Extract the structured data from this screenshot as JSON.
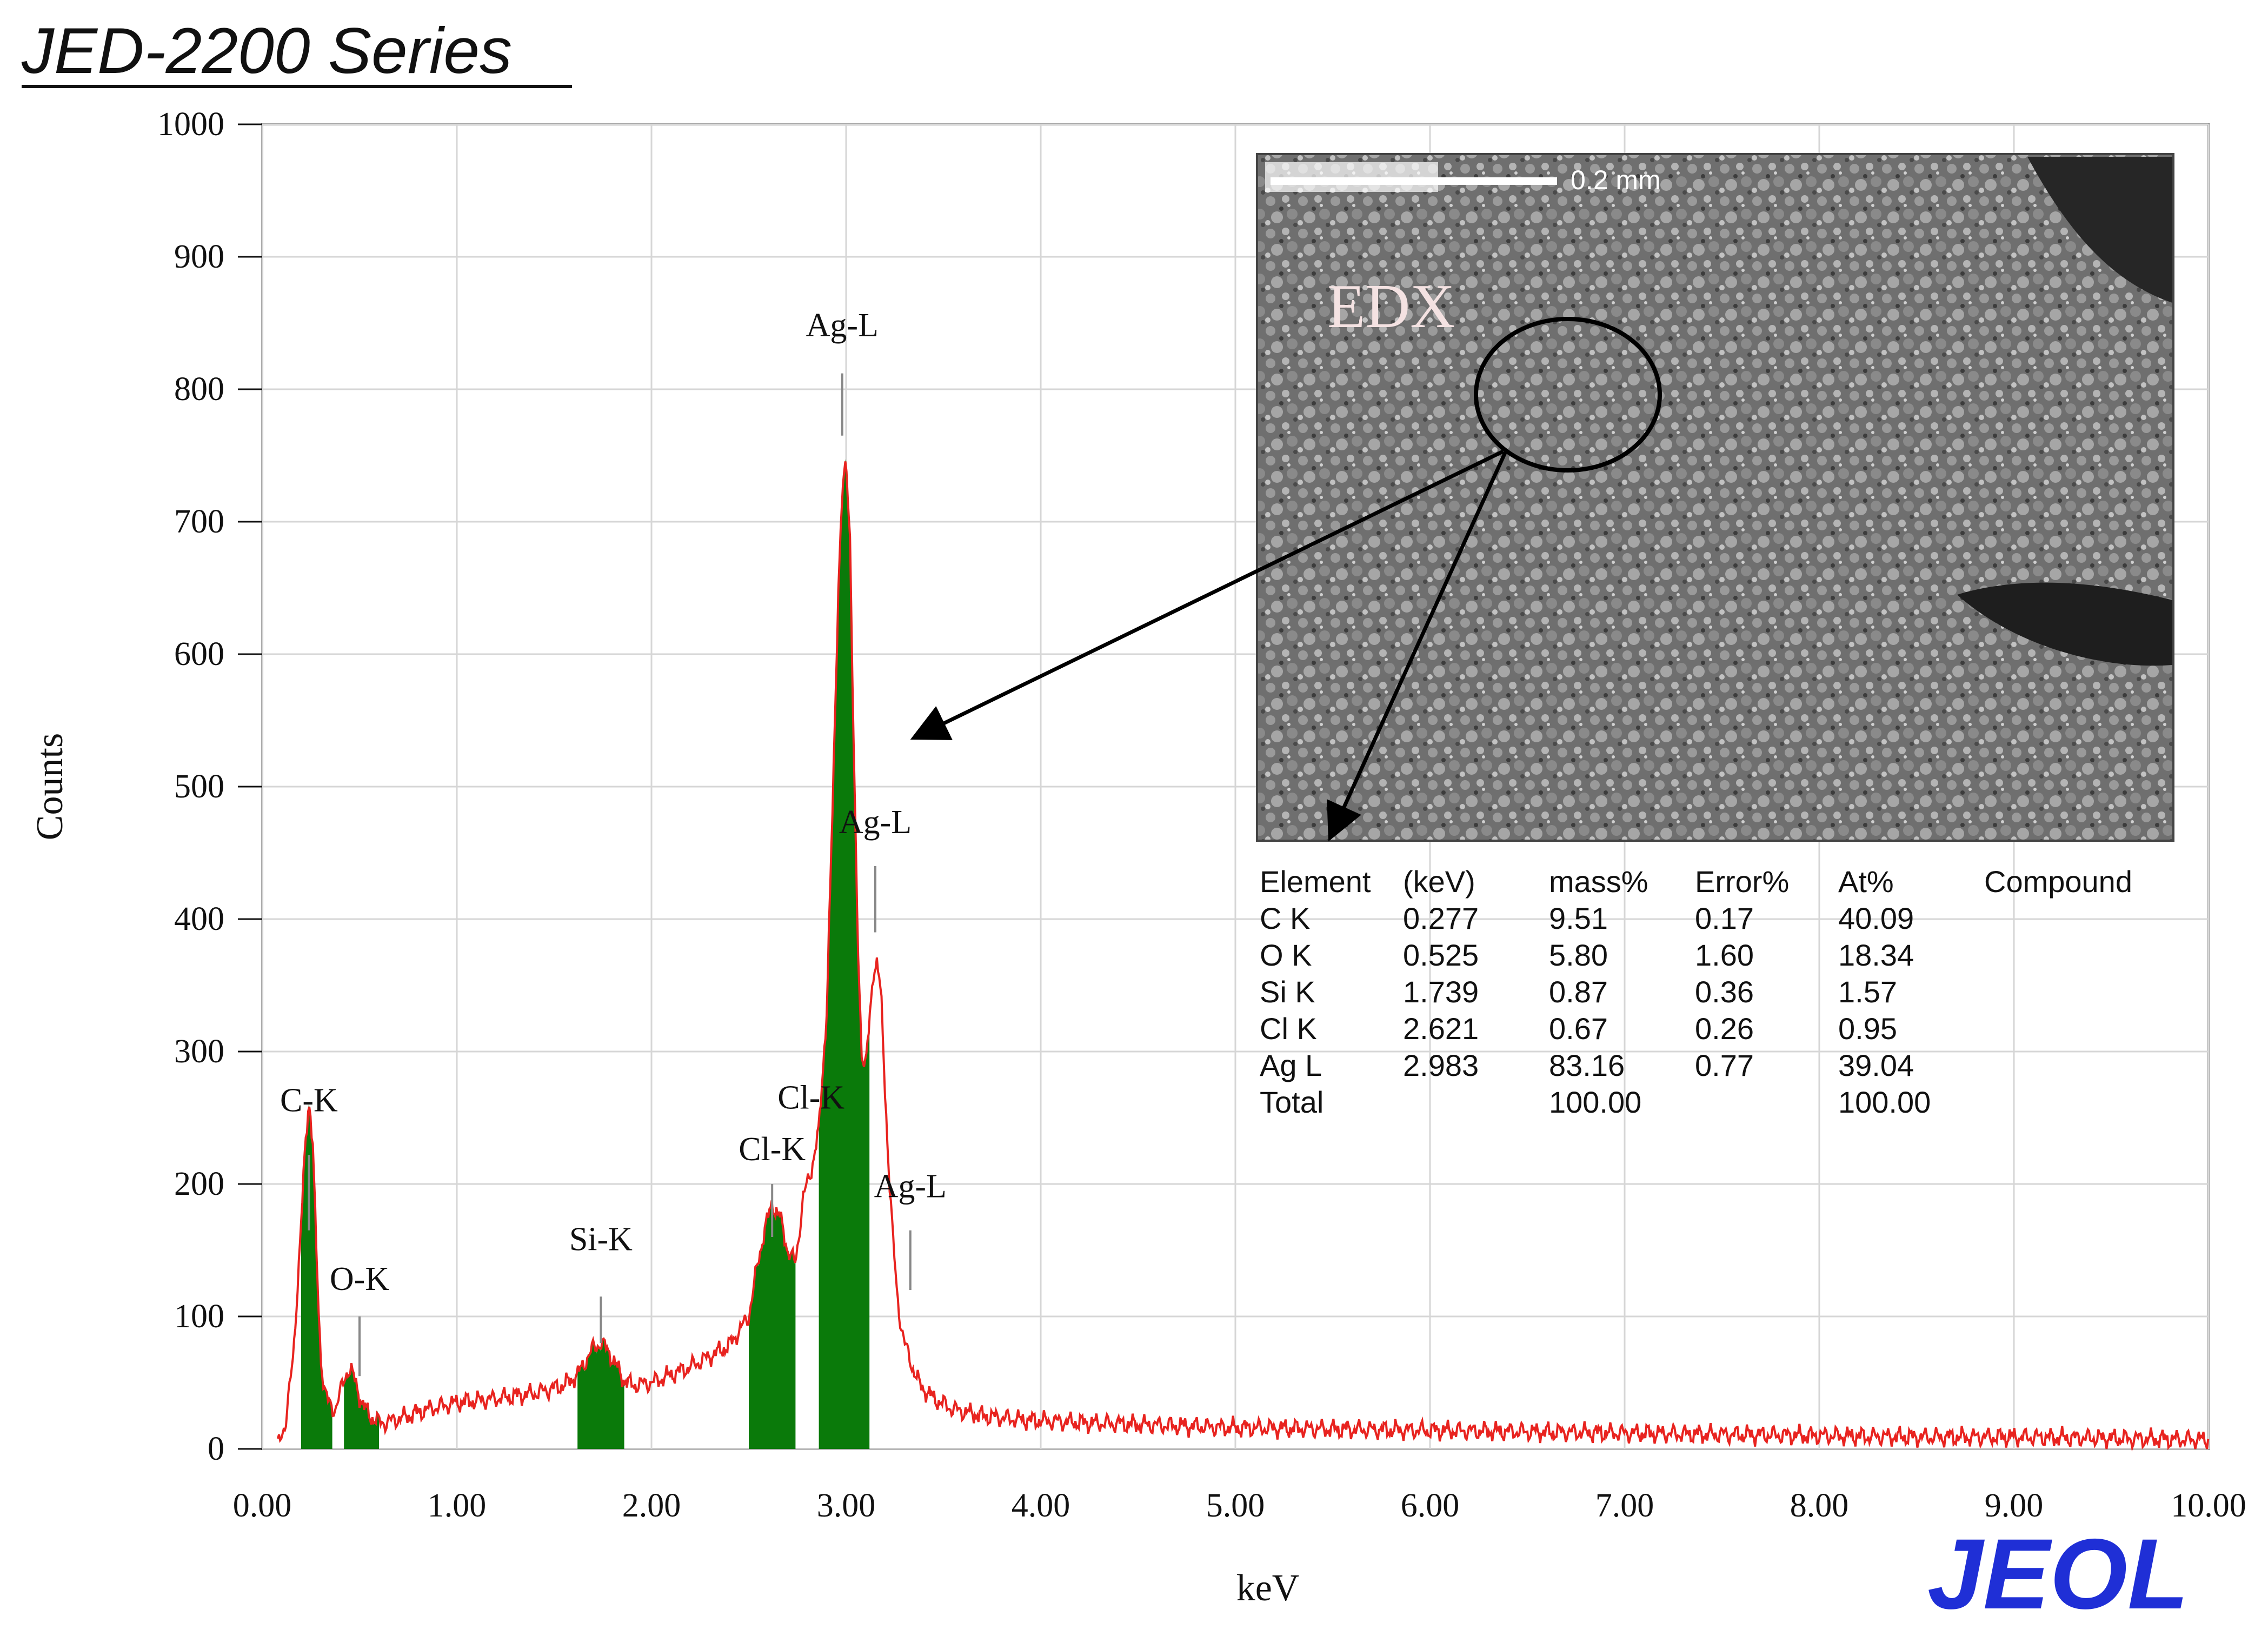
{
  "header": {
    "title": "JED-2200 Series"
  },
  "logo": {
    "text": "JEOL",
    "color": "#1f2fd6"
  },
  "chart_data": {
    "type": "line",
    "xlabel": "keV",
    "ylabel": "Counts",
    "xlim": [
      0,
      10
    ],
    "ylim": [
      0,
      1000
    ],
    "grid": true,
    "xticks": [
      "0.00",
      "1.00",
      "2.00",
      "3.00",
      "4.00",
      "5.00",
      "6.00",
      "7.00",
      "8.00",
      "9.00",
      "10.00"
    ],
    "yticks": [
      "0",
      "100",
      "200",
      "300",
      "400",
      "500",
      "600",
      "700",
      "800",
      "900",
      "1000"
    ],
    "spectrum_color": "#e8231f",
    "fill_color": "#0a7a0a",
    "spectrum": {
      "x": [
        0.08,
        0.12,
        0.16,
        0.18,
        0.2,
        0.22,
        0.24,
        0.26,
        0.28,
        0.3,
        0.32,
        0.34,
        0.36,
        0.38,
        0.4,
        0.42,
        0.44,
        0.46,
        0.48,
        0.5,
        0.52,
        0.54,
        0.56,
        0.58,
        0.6,
        0.62,
        0.64,
        0.68,
        0.75,
        0.85,
        1.0,
        1.2,
        1.4,
        1.55,
        1.62,
        1.66,
        1.7,
        1.74,
        1.78,
        1.82,
        1.86,
        1.9,
        2.0,
        2.2,
        2.4,
        2.5,
        2.54,
        2.58,
        2.62,
        2.66,
        2.7,
        2.74,
        2.78,
        2.82,
        2.86,
        2.9,
        2.93,
        2.96,
        2.98,
        3.0,
        3.02,
        3.04,
        3.06,
        3.08,
        3.1,
        3.12,
        3.14,
        3.16,
        3.18,
        3.2,
        3.22,
        3.24,
        3.26,
        3.28,
        3.3,
        3.34,
        3.38,
        3.45,
        3.55,
        3.7,
        3.9,
        4.2,
        4.6,
        5.0,
        5.5,
        6.0,
        6.5,
        7.0,
        7.5,
        8.0,
        8.5,
        9.0,
        9.5,
        10.0
      ],
      "y": [
        2,
        20,
        70,
        120,
        170,
        225,
        265,
        230,
        140,
        70,
        45,
        35,
        30,
        32,
        42,
        52,
        60,
        58,
        50,
        40,
        32,
        28,
        24,
        22,
        20,
        20,
        20,
        22,
        25,
        30,
        35,
        38,
        42,
        48,
        56,
        66,
        76,
        80,
        74,
        62,
        52,
        48,
        50,
        62,
        78,
        100,
        135,
        165,
        185,
        175,
        150,
        140,
        190,
        210,
        240,
        330,
        480,
        650,
        720,
        745,
        690,
        520,
        380,
        300,
        290,
        320,
        360,
        370,
        340,
        270,
        210,
        160,
        120,
        95,
        80,
        62,
        48,
        38,
        30,
        25,
        22,
        20,
        18,
        16,
        15,
        14,
        13,
        12,
        11,
        10,
        9,
        9,
        8,
        7
      ]
    },
    "fill_ranges": [
      [
        0.2,
        0.36
      ],
      [
        0.42,
        0.6
      ],
      [
        1.62,
        1.86
      ],
      [
        2.5,
        2.74
      ],
      [
        2.86,
        3.12
      ]
    ],
    "peak_labels": [
      {
        "text": "C-K",
        "x": 0.24,
        "y": 255,
        "line_from": 222,
        "line_to": 165
      },
      {
        "text": "O-K",
        "x": 0.5,
        "y": 120,
        "line_from": 100,
        "line_to": 55
      },
      {
        "text": "Si-K",
        "x": 1.74,
        "y": 150,
        "line_from": 115,
        "line_to": 80
      },
      {
        "text": "Cl-K",
        "x": 2.62,
        "y": 218,
        "line_from": 200,
        "line_to": 160
      },
      {
        "text": "Cl-K",
        "x": 2.82,
        "y": 257,
        "line_from": 0,
        "line_to": 0
      },
      {
        "text": "Ag-L",
        "x": 2.98,
        "y": 840,
        "line_from": 812,
        "line_to": 765
      },
      {
        "text": "Ag-L",
        "x": 3.15,
        "y": 465,
        "line_from": 440,
        "line_to": 390
      },
      {
        "text": "Ag-L",
        "x": 3.33,
        "y": 190,
        "line_from": 165,
        "line_to": 120
      }
    ]
  },
  "inset": {
    "scale_label": "0.2 mm",
    "label": "EDX"
  },
  "table": {
    "headers": [
      "Element",
      "(keV)",
      "mass%",
      "Error%",
      "At%",
      "Compound"
    ],
    "rows": [
      [
        "C  K",
        "0.277",
        "9.51",
        "0.17",
        "40.09",
        ""
      ],
      [
        "O  K",
        "0.525",
        "5.80",
        "1.60",
        "18.34",
        ""
      ],
      [
        "Si K",
        "1.739",
        "0.87",
        "0.36",
        "1.57",
        ""
      ],
      [
        "Cl K",
        "2.621",
        "0.67",
        "0.26",
        "0.95",
        ""
      ],
      [
        "Ag L",
        "2.983",
        "83.16",
        "0.77",
        "39.04",
        ""
      ],
      [
        "Total",
        "",
        "100.00",
        "",
        "100.00",
        ""
      ]
    ]
  }
}
